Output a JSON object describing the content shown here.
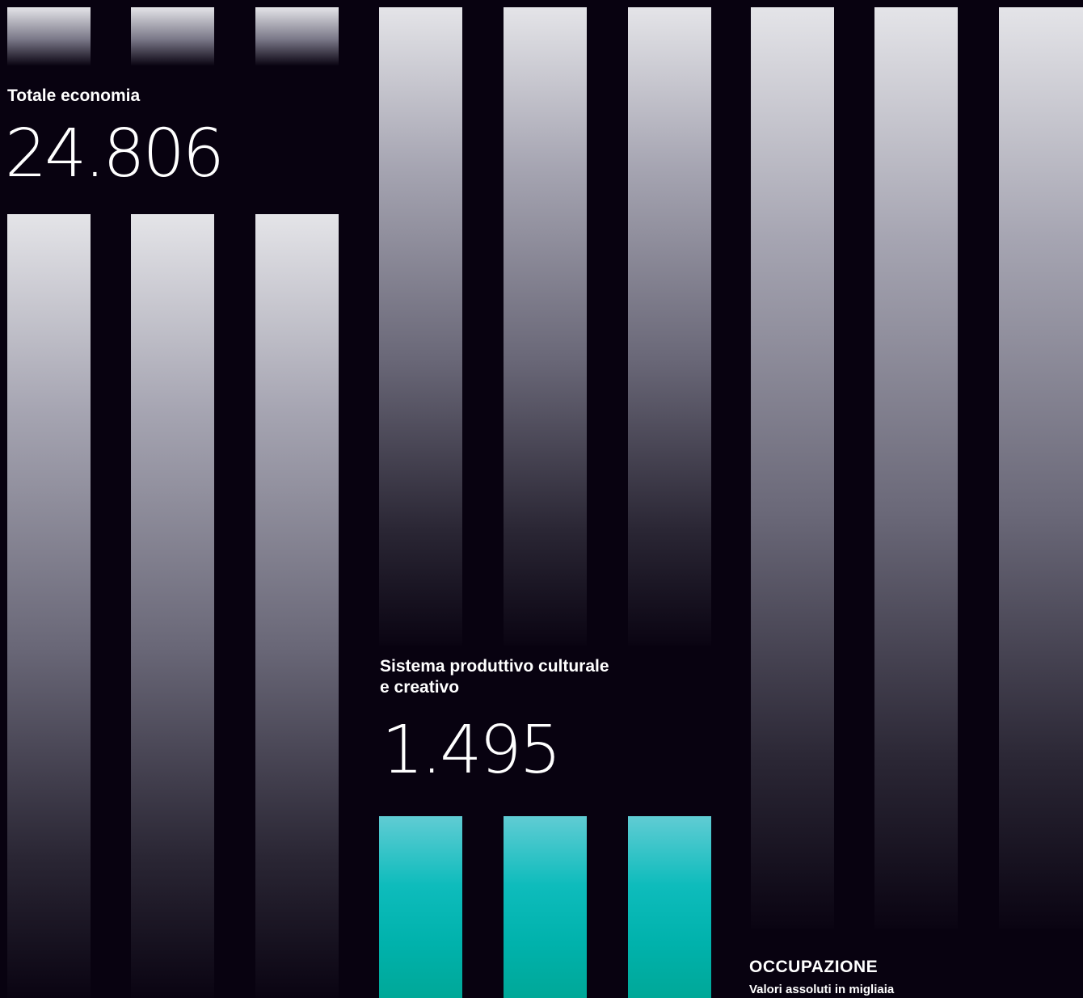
{
  "chart_data": {
    "type": "bar",
    "title": "OCCUPAZIONE",
    "subtitle": "Valori assoluti in migliaia",
    "categories": [
      "Totale economia",
      "Sistema produttivo culturale\ne creativo"
    ],
    "values": [
      24806,
      1495
    ],
    "value_labels": [
      "24.806",
      "1.495"
    ],
    "colors": {
      "background": "#080210",
      "totale_bars": "#e4e4e8",
      "sistema_bars": "#00b2ac"
    }
  }
}
